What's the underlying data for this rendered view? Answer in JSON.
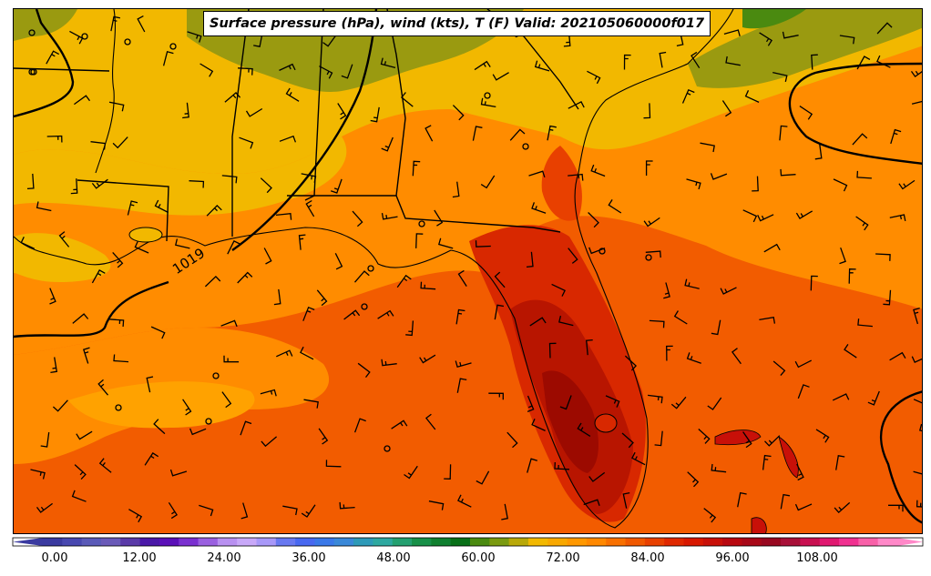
{
  "title": "Surface pressure (hPa), wind (kts), T (F) Valid: 202105060000f017",
  "isobar_label": "1019",
  "colors": {
    "temp_low": "#f2b800",
    "temp_mid": "#ff8c00",
    "temp_warm": "#f25c00",
    "temp_hot": "#d82800",
    "temp_hotter": "#b81500",
    "temp_hottest": "#9c0a00",
    "olive": "#9a9a10",
    "green": "#4a8a10"
  },
  "colorbar": {
    "ticks": [
      "0.00",
      "12.00",
      "24.00",
      "36.00",
      "48.00",
      "60.00",
      "72.00",
      "84.00",
      "96.00",
      "108.00"
    ],
    "colors": [
      "#3a3aa0",
      "#4848b0",
      "#5a5ab8",
      "#6a5ab8",
      "#5a3aa8",
      "#4a18a8",
      "#5a10b8",
      "#7a30d0",
      "#9a60e0",
      "#b890f0",
      "#c8a8f8",
      "#a898f8",
      "#6878f0",
      "#4868f0",
      "#3a78e8",
      "#3a88d8",
      "#2e9ab8",
      "#2ea8a0",
      "#24a070",
      "#189048",
      "#108030",
      "#087018",
      "#4a8a10",
      "#7a9a10",
      "#b8a808",
      "#f2b800",
      "#f8a800",
      "#ff9800",
      "#ff8800",
      "#f87000",
      "#f05800",
      "#e84000",
      "#e02800",
      "#d81800",
      "#c81008",
      "#b80810",
      "#a80818",
      "#980820",
      "#a81038",
      "#c81050",
      "#e01870",
      "#f03090",
      "#f860a8",
      "#ff88c8"
    ]
  }
}
